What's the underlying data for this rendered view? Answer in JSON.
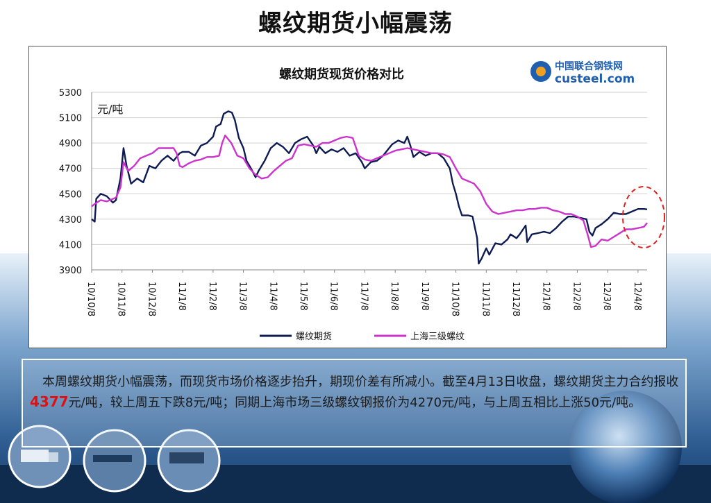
{
  "slide": {
    "title": "螺纹期货小幅震荡"
  },
  "logo": {
    "line1": "中国联合钢铁网",
    "line2": "custeel.com"
  },
  "summary": {
    "text_before": "本周螺纹期货小幅震荡，而现货市场价格逐步抬升，期现价差有所减小。截至4月13日收盘，螺纹期货主力合约报收 ",
    "highlight": "4377",
    "text_after": "元/吨，较上周五下跌8元/吨；同期上海市场三级螺纹钢报价为4270元/吨，与上周五相比上涨50元/吨。"
  },
  "colors": {
    "futures": "#0d1b52",
    "spot": "#cc33cc",
    "highlight": "#e01010",
    "annotation_circle": "#e02020"
  },
  "chart_data": {
    "type": "line",
    "title": "螺纹期货现货价格对比",
    "unit_label": "元/吨",
    "ylim": [
      3900,
      5300
    ],
    "yticks": [
      3900,
      4100,
      4300,
      4500,
      4700,
      4900,
      5100,
      5300
    ],
    "xticks": [
      "10/10/8",
      "10/11/8",
      "10/12/8",
      "11/1/8",
      "11/2/8",
      "11/3/8",
      "11/4/8",
      "11/5/8",
      "11/6/8",
      "11/7/8",
      "11/8/8",
      "11/9/8",
      "11/10/8",
      "11/11/8",
      "11/12/8",
      "12/1/8",
      "12/2/8",
      "12/3/8",
      "12/4/8"
    ],
    "xlim": [
      0,
      18.3
    ],
    "grid": true,
    "legend_position": "bottom",
    "series": [
      {
        "name": "螺纹期货",
        "points": [
          [
            0,
            4300
          ],
          [
            0.1,
            4280
          ],
          [
            0.15,
            4460
          ],
          [
            0.3,
            4500
          ],
          [
            0.5,
            4480
          ],
          [
            0.7,
            4430
          ],
          [
            0.8,
            4450
          ],
          [
            0.95,
            4620
          ],
          [
            1.05,
            4860
          ],
          [
            1.15,
            4720
          ],
          [
            1.3,
            4580
          ],
          [
            1.5,
            4620
          ],
          [
            1.7,
            4590
          ],
          [
            1.9,
            4720
          ],
          [
            2.1,
            4700
          ],
          [
            2.3,
            4760
          ],
          [
            2.5,
            4800
          ],
          [
            2.7,
            4760
          ],
          [
            2.9,
            4820
          ],
          [
            3.0,
            4830
          ],
          [
            3.2,
            4830
          ],
          [
            3.4,
            4800
          ],
          [
            3.6,
            4880
          ],
          [
            3.8,
            4900
          ],
          [
            4.0,
            4950
          ],
          [
            4.1,
            5030
          ],
          [
            4.25,
            5050
          ],
          [
            4.35,
            5130
          ],
          [
            4.5,
            5150
          ],
          [
            4.62,
            5140
          ],
          [
            4.72,
            5080
          ],
          [
            4.85,
            4940
          ],
          [
            5.0,
            4860
          ],
          [
            5.1,
            4760
          ],
          [
            5.25,
            4700
          ],
          [
            5.4,
            4630
          ],
          [
            5.5,
            4680
          ],
          [
            5.7,
            4760
          ],
          [
            5.9,
            4860
          ],
          [
            6.1,
            4900
          ],
          [
            6.3,
            4870
          ],
          [
            6.5,
            4820
          ],
          [
            6.7,
            4900
          ],
          [
            6.9,
            4930
          ],
          [
            7.1,
            4950
          ],
          [
            7.3,
            4880
          ],
          [
            7.4,
            4820
          ],
          [
            7.5,
            4870
          ],
          [
            7.7,
            4820
          ],
          [
            7.9,
            4850
          ],
          [
            8.1,
            4830
          ],
          [
            8.3,
            4860
          ],
          [
            8.5,
            4800
          ],
          [
            8.7,
            4820
          ],
          [
            8.9,
            4750
          ],
          [
            9.0,
            4700
          ],
          [
            9.2,
            4750
          ],
          [
            9.4,
            4760
          ],
          [
            9.6,
            4800
          ],
          [
            9.8,
            4860
          ],
          [
            9.9,
            4890
          ],
          [
            10.1,
            4920
          ],
          [
            10.3,
            4900
          ],
          [
            10.4,
            4950
          ],
          [
            10.5,
            4880
          ],
          [
            10.6,
            4790
          ],
          [
            10.8,
            4830
          ],
          [
            11.0,
            4800
          ],
          [
            11.2,
            4820
          ],
          [
            11.4,
            4820
          ],
          [
            11.6,
            4780
          ],
          [
            11.8,
            4700
          ],
          [
            11.9,
            4580
          ],
          [
            12.0,
            4500
          ],
          [
            12.1,
            4400
          ],
          [
            12.2,
            4330
          ],
          [
            12.4,
            4330
          ],
          [
            12.55,
            4320
          ],
          [
            12.7,
            4150
          ],
          [
            12.75,
            3950
          ],
          [
            12.85,
            3990
          ],
          [
            13.0,
            4070
          ],
          [
            13.1,
            4020
          ],
          [
            13.3,
            4110
          ],
          [
            13.5,
            4100
          ],
          [
            13.7,
            4140
          ],
          [
            13.8,
            4180
          ],
          [
            14.0,
            4150
          ],
          [
            14.1,
            4180
          ],
          [
            14.3,
            4250
          ],
          [
            14.35,
            4120
          ],
          [
            14.5,
            4180
          ],
          [
            14.7,
            4190
          ],
          [
            14.9,
            4200
          ],
          [
            15.1,
            4190
          ],
          [
            15.3,
            4230
          ],
          [
            15.5,
            4280
          ],
          [
            15.7,
            4320
          ],
          [
            15.9,
            4320
          ],
          [
            16.1,
            4310
          ],
          [
            16.3,
            4300
          ],
          [
            16.4,
            4200
          ],
          [
            16.5,
            4170
          ],
          [
            16.6,
            4230
          ],
          [
            16.8,
            4260
          ],
          [
            17.0,
            4300
          ],
          [
            17.2,
            4350
          ],
          [
            17.4,
            4340
          ],
          [
            17.6,
            4340
          ],
          [
            17.8,
            4360
          ],
          [
            18.0,
            4380
          ],
          [
            18.2,
            4380
          ],
          [
            18.3,
            4377
          ]
        ]
      },
      {
        "name": "上海三级螺纹",
        "points": [
          [
            0,
            4400
          ],
          [
            0.1,
            4420
          ],
          [
            0.3,
            4450
          ],
          [
            0.5,
            4440
          ],
          [
            0.8,
            4470
          ],
          [
            0.95,
            4550
          ],
          [
            1.05,
            4750
          ],
          [
            1.2,
            4680
          ],
          [
            1.4,
            4720
          ],
          [
            1.6,
            4780
          ],
          [
            1.8,
            4800
          ],
          [
            2.0,
            4820
          ],
          [
            2.2,
            4860
          ],
          [
            2.4,
            4860
          ],
          [
            2.7,
            4860
          ],
          [
            2.8,
            4820
          ],
          [
            2.9,
            4720
          ],
          [
            3.0,
            4710
          ],
          [
            3.2,
            4740
          ],
          [
            3.4,
            4760
          ],
          [
            3.6,
            4770
          ],
          [
            3.8,
            4790
          ],
          [
            4.0,
            4790
          ],
          [
            4.2,
            4800
          ],
          [
            4.3,
            4900
          ],
          [
            4.4,
            4960
          ],
          [
            4.6,
            4900
          ],
          [
            4.8,
            4800
          ],
          [
            5.0,
            4780
          ],
          [
            5.2,
            4700
          ],
          [
            5.4,
            4650
          ],
          [
            5.6,
            4620
          ],
          [
            5.8,
            4630
          ],
          [
            6.0,
            4680
          ],
          [
            6.2,
            4720
          ],
          [
            6.4,
            4760
          ],
          [
            6.6,
            4780
          ],
          [
            6.8,
            4880
          ],
          [
            7.0,
            4890
          ],
          [
            7.2,
            4880
          ],
          [
            7.4,
            4870
          ],
          [
            7.6,
            4900
          ],
          [
            7.8,
            4900
          ],
          [
            8.0,
            4920
          ],
          [
            8.2,
            4940
          ],
          [
            8.4,
            4950
          ],
          [
            8.6,
            4940
          ],
          [
            8.8,
            4800
          ],
          [
            9.0,
            4770
          ],
          [
            9.2,
            4760
          ],
          [
            9.4,
            4780
          ],
          [
            9.6,
            4800
          ],
          [
            9.8,
            4820
          ],
          [
            10.0,
            4840
          ],
          [
            10.2,
            4850
          ],
          [
            10.4,
            4860
          ],
          [
            10.6,
            4850
          ],
          [
            10.8,
            4840
          ],
          [
            11.0,
            4830
          ],
          [
            11.2,
            4820
          ],
          [
            11.4,
            4820
          ],
          [
            11.6,
            4810
          ],
          [
            11.8,
            4790
          ],
          [
            12.0,
            4700
          ],
          [
            12.2,
            4620
          ],
          [
            12.4,
            4600
          ],
          [
            12.6,
            4580
          ],
          [
            12.8,
            4520
          ],
          [
            13.0,
            4420
          ],
          [
            13.2,
            4360
          ],
          [
            13.4,
            4340
          ],
          [
            13.6,
            4350
          ],
          [
            13.8,
            4360
          ],
          [
            14.0,
            4370
          ],
          [
            14.2,
            4370
          ],
          [
            14.4,
            4380
          ],
          [
            14.6,
            4380
          ],
          [
            14.8,
            4390
          ],
          [
            15.0,
            4390
          ],
          [
            15.2,
            4370
          ],
          [
            15.4,
            4360
          ],
          [
            15.6,
            4340
          ],
          [
            15.8,
            4340
          ],
          [
            16.0,
            4320
          ],
          [
            16.2,
            4290
          ],
          [
            16.35,
            4170
          ],
          [
            16.45,
            4080
          ],
          [
            16.6,
            4090
          ],
          [
            16.8,
            4140
          ],
          [
            17.0,
            4130
          ],
          [
            17.2,
            4160
          ],
          [
            17.4,
            4190
          ],
          [
            17.6,
            4220
          ],
          [
            17.8,
            4220
          ],
          [
            18.0,
            4230
          ],
          [
            18.2,
            4240
          ],
          [
            18.3,
            4270
          ]
        ]
      }
    ]
  }
}
